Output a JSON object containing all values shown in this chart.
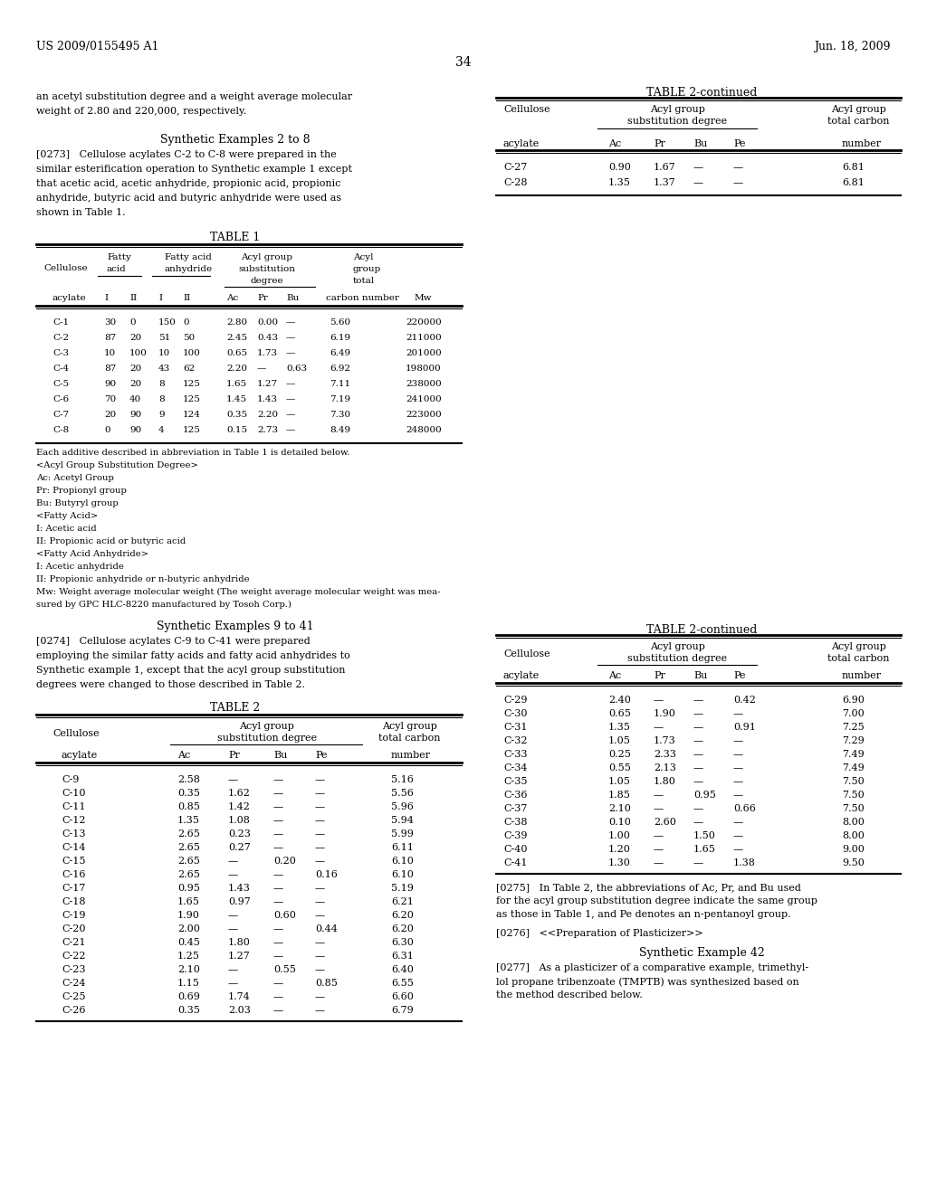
{
  "page_header_left": "US 2009/0155495 A1",
  "page_header_right": "Jun. 18, 2009",
  "page_number": "34",
  "bg_color": "#ffffff",
  "text_color": "#000000",
  "top_text": [
    "an acetyl substitution degree and a weight average molecular",
    "weight of 2.80 and 220,000, respectively."
  ],
  "synth_examples_2_8_title": "Synthetic Examples 2 to 8",
  "para_273_lines": [
    "[0273]   Cellulose acylates C-2 to C-8 were prepared in the",
    "similar esterification operation to Synthetic example 1 except",
    "that acetic acid, acetic anhydride, propionic acid, propionic",
    "anhydride, butyric acid and butyric anhydride were used as",
    "shown in Table 1."
  ],
  "table2cont_top_title": "TABLE 2-continued",
  "table2cont_top_data": [
    [
      "C-27",
      "0.90",
      "1.67",
      "—",
      "—",
      "6.81"
    ],
    [
      "C-28",
      "1.35",
      "1.37",
      "—",
      "—",
      "6.81"
    ]
  ],
  "table1_title": "TABLE 1",
  "table1_data": [
    [
      "C-1",
      "30",
      "0",
      "150",
      "0",
      "2.80",
      "0.00",
      "—",
      "5.60",
      "220000"
    ],
    [
      "C-2",
      "87",
      "20",
      "51",
      "50",
      "2.45",
      "0.43",
      "—",
      "6.19",
      "211000"
    ],
    [
      "C-3",
      "10",
      "100",
      "10",
      "100",
      "0.65",
      "1.73",
      "—",
      "6.49",
      "201000"
    ],
    [
      "C-4",
      "87",
      "20",
      "43",
      "62",
      "2.20",
      "—",
      "0.63",
      "6.92",
      "198000"
    ],
    [
      "C-5",
      "90",
      "20",
      "8",
      "125",
      "1.65",
      "1.27",
      "—",
      "7.11",
      "238000"
    ],
    [
      "C-6",
      "70",
      "40",
      "8",
      "125",
      "1.45",
      "1.43",
      "—",
      "7.19",
      "241000"
    ],
    [
      "C-7",
      "20",
      "90",
      "9",
      "124",
      "0.35",
      "2.20",
      "—",
      "7.30",
      "223000"
    ],
    [
      "C-8",
      "0",
      "90",
      "4",
      "125",
      "0.15",
      "2.73",
      "—",
      "8.49",
      "248000"
    ]
  ],
  "table1_notes": [
    "Each additive described in abbreviation in Table 1 is detailed below.",
    "<Acyl Group Substitution Degree>",
    "Ac: Acetyl Group",
    "Pr: Propionyl group",
    "Bu: Butyryl group",
    "<Fatty Acid>",
    "I: Acetic acid",
    "II: Propionic acid or butyric acid",
    "<Fatty Acid Anhydride>",
    "I: Acetic anhydride",
    "II: Propionic anhydride or n-butyric anhydride",
    "Mw: Weight average molecular weight (The weight average molecular weight was mea-",
    "sured by GPC HLC-8220 manufactured by Tosoh Corp.)"
  ],
  "synth_examples_9_41_title": "Synthetic Examples 9 to 41",
  "para_274_lines": [
    "[0274]   Cellulose acylates C-9 to C-41 were prepared",
    "employing the similar fatty acids and fatty acid anhydrides to",
    "Synthetic example 1, except that the acyl group substitution",
    "degrees were changed to those described in Table 2."
  ],
  "table2_title": "TABLE 2",
  "table2_data": [
    [
      "C-9",
      "2.58",
      "—",
      "—",
      "—",
      "5.16"
    ],
    [
      "C-10",
      "0.35",
      "1.62",
      "—",
      "—",
      "5.56"
    ],
    [
      "C-11",
      "0.85",
      "1.42",
      "—",
      "—",
      "5.96"
    ],
    [
      "C-12",
      "1.35",
      "1.08",
      "—",
      "—",
      "5.94"
    ],
    [
      "C-13",
      "2.65",
      "0.23",
      "—",
      "—",
      "5.99"
    ],
    [
      "C-14",
      "2.65",
      "0.27",
      "—",
      "—",
      "6.11"
    ],
    [
      "C-15",
      "2.65",
      "—",
      "0.20",
      "—",
      "6.10"
    ],
    [
      "C-16",
      "2.65",
      "—",
      "—",
      "0.16",
      "6.10"
    ],
    [
      "C-17",
      "0.95",
      "1.43",
      "—",
      "—",
      "5.19"
    ],
    [
      "C-18",
      "1.65",
      "0.97",
      "—",
      "—",
      "6.21"
    ],
    [
      "C-19",
      "1.90",
      "—",
      "0.60",
      "—",
      "6.20"
    ],
    [
      "C-20",
      "2.00",
      "—",
      "—",
      "0.44",
      "6.20"
    ],
    [
      "C-21",
      "0.45",
      "1.80",
      "—",
      "—",
      "6.30"
    ],
    [
      "C-22",
      "1.25",
      "1.27",
      "—",
      "—",
      "6.31"
    ],
    [
      "C-23",
      "2.10",
      "—",
      "0.55",
      "—",
      "6.40"
    ],
    [
      "C-24",
      "1.15",
      "—",
      "—",
      "0.85",
      "6.55"
    ],
    [
      "C-25",
      "0.69",
      "1.74",
      "—",
      "—",
      "6.60"
    ],
    [
      "C-26",
      "0.35",
      "2.03",
      "—",
      "—",
      "6.79"
    ]
  ],
  "table2cont_bot_title": "TABLE 2-continued",
  "table2cont_bot_data": [
    [
      "C-29",
      "2.40",
      "—",
      "—",
      "0.42",
      "6.90"
    ],
    [
      "C-30",
      "0.65",
      "1.90",
      "—",
      "—",
      "7.00"
    ],
    [
      "C-31",
      "1.35",
      "—",
      "—",
      "0.91",
      "7.25"
    ],
    [
      "C-32",
      "1.05",
      "1.73",
      "—",
      "—",
      "7.29"
    ],
    [
      "C-33",
      "0.25",
      "2.33",
      "—",
      "—",
      "7.49"
    ],
    [
      "C-34",
      "0.55",
      "2.13",
      "—",
      "—",
      "7.49"
    ],
    [
      "C-35",
      "1.05",
      "1.80",
      "—",
      "—",
      "7.50"
    ],
    [
      "C-36",
      "1.85",
      "—",
      "0.95",
      "—",
      "7.50"
    ],
    [
      "C-37",
      "2.10",
      "—",
      "—",
      "0.66",
      "7.50"
    ],
    [
      "C-38",
      "0.10",
      "2.60",
      "—",
      "—",
      "8.00"
    ],
    [
      "C-39",
      "1.00",
      "—",
      "1.50",
      "—",
      "8.00"
    ],
    [
      "C-40",
      "1.20",
      "—",
      "1.65",
      "—",
      "9.00"
    ],
    [
      "C-41",
      "1.30",
      "—",
      "—",
      "1.38",
      "9.50"
    ]
  ],
  "para_275_lines": [
    "[0275]   In Table 2, the abbreviations of Ac, Pr, and Bu used",
    "for the acyl group substitution degree indicate the same group",
    "as those in Table 1, and Pe denotes an n-pentanoyl group."
  ],
  "para_276_line": "[0276]   <<Preparation of Plasticizer>>",
  "synth_example_42_title": "Synthetic Example 42",
  "para_277_lines": [
    "[0277]   As a plasticizer of a comparative example, trimethyl-",
    "lol propane tribenzoate (TMPTB) was synthesized based on",
    "the method described below."
  ]
}
